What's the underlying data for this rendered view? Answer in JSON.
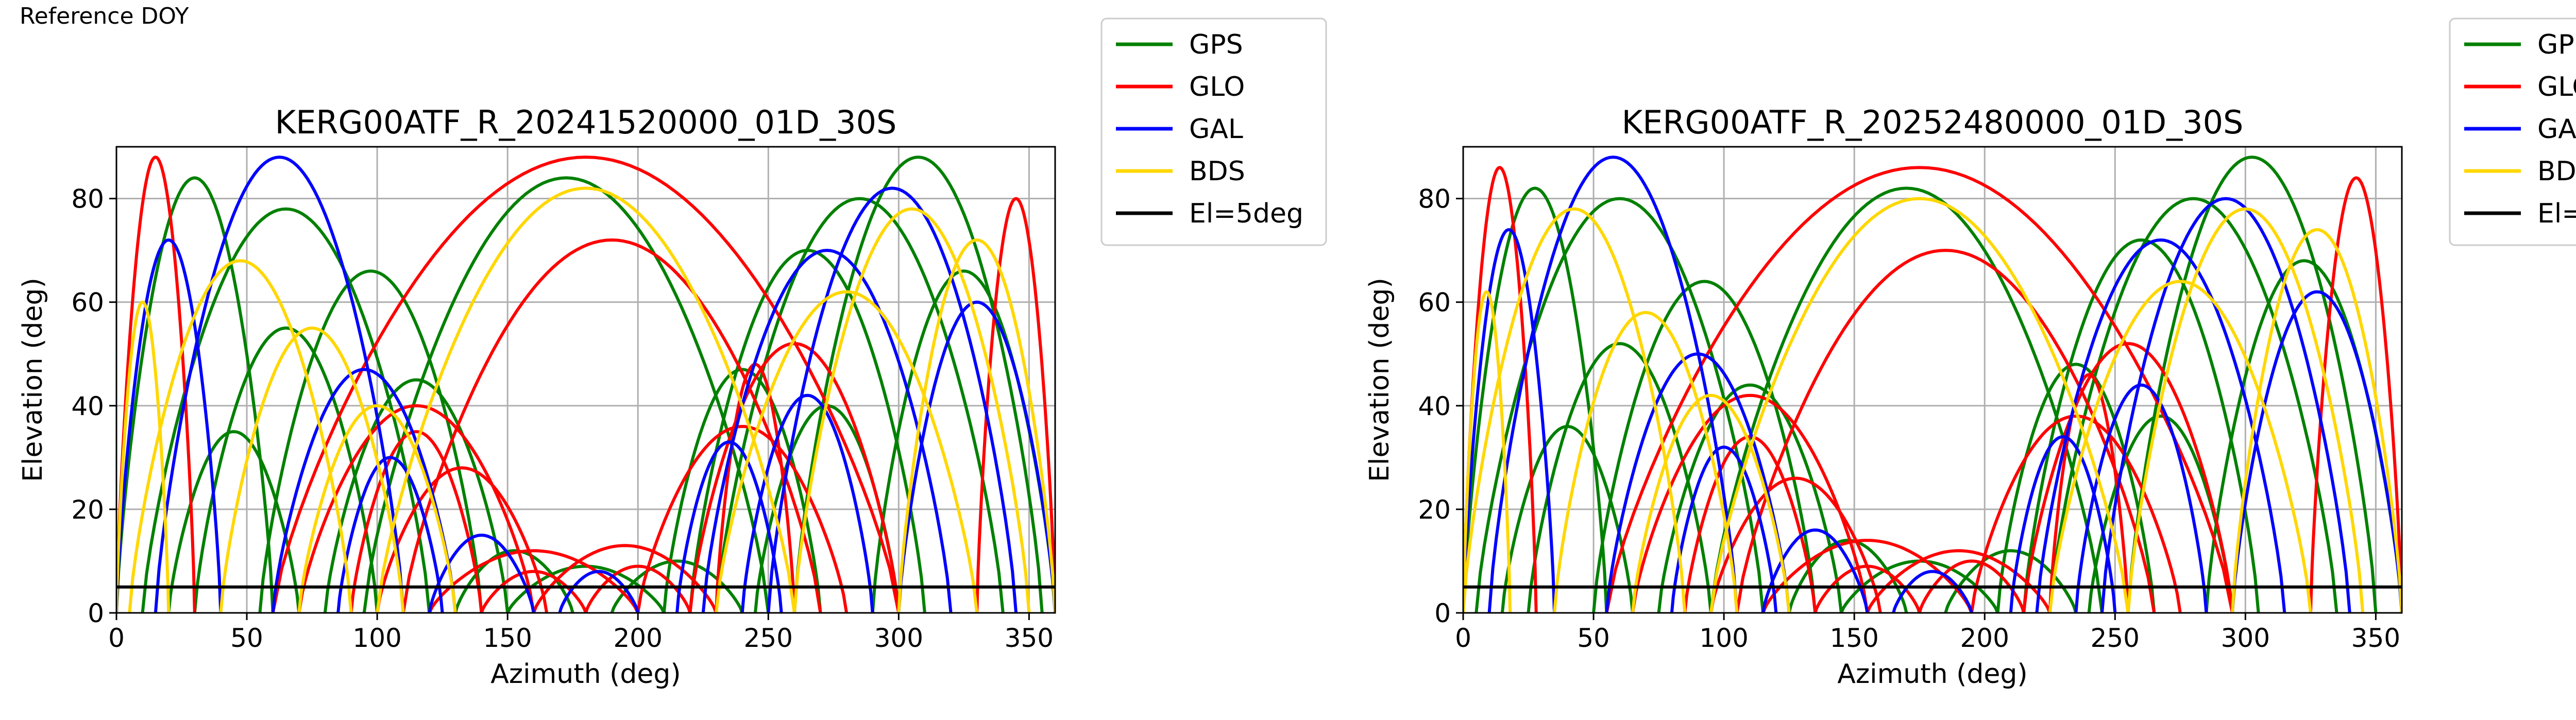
{
  "figure": {
    "suptitle": "Reference DOY"
  },
  "colors": {
    "GPS": "#008000",
    "GLO": "#ff0000",
    "GAL": "#0000ff",
    "BDS": "#ffd700",
    "El=5deg": "#000000"
  },
  "legend": {
    "entries": [
      "GPS",
      "GLO",
      "GAL",
      "BDS",
      "El=5deg"
    ],
    "placement": "outside-top-right"
  },
  "chart_data": [
    {
      "type": "line",
      "title": "KERG00ATF_R_20241520000_01D_30S",
      "xlabel": "Azimuth (deg)",
      "ylabel": "Elevation (deg)",
      "xlim": [
        0,
        360
      ],
      "ylim": [
        0,
        90
      ],
      "xticks": [
        0,
        50,
        100,
        150,
        200,
        250,
        300,
        350
      ],
      "yticks": [
        0,
        20,
        40,
        60,
        80
      ],
      "grid": true,
      "reference_line": {
        "name": "El=5deg",
        "y": 5
      },
      "series": [
        {
          "name": "GPS",
          "arcs": [
            {
              "rise": 10,
              "set": 120,
              "peak": 78
            },
            {
              "rise": 30,
              "set": 100,
              "peak": 55
            },
            {
              "rise": 55,
              "set": 140,
              "peak": 66
            },
            {
              "rise": 80,
              "set": 150,
              "peak": 45
            },
            {
              "rise": 95,
              "set": 250,
              "peak": 84
            },
            {
              "rise": 130,
              "set": 175,
              "peak": 12
            },
            {
              "rise": 150,
              "set": 210,
              "peak": 9
            },
            {
              "rise": 210,
              "set": 270,
              "peak": 47
            },
            {
              "rise": 220,
              "set": 310,
              "peak": 70
            },
            {
              "rise": 230,
              "set": 340,
              "peak": 80
            },
            {
              "rise": 245,
              "set": 300,
              "peak": 40
            },
            {
              "rise": 260,
              "set": 355,
              "peak": 88
            },
            {
              "rise": 0,
              "set": 60,
              "peak": 84
            },
            {
              "rise": 290,
              "set": 360,
              "peak": 66
            },
            {
              "rise": 20,
              "set": 70,
              "peak": 35
            },
            {
              "rise": 190,
              "set": 240,
              "peak": 10
            }
          ]
        },
        {
          "name": "GLO",
          "arcs": [
            {
              "rise": 70,
              "set": 160,
              "peak": 40
            },
            {
              "rise": 90,
              "set": 140,
              "peak": 35
            },
            {
              "rise": 100,
              "set": 165,
              "peak": 28
            },
            {
              "rise": 120,
              "set": 200,
              "peak": 12
            },
            {
              "rise": 160,
              "set": 230,
              "peak": 13
            },
            {
              "rise": 200,
              "set": 280,
              "peak": 36
            },
            {
              "rise": 220,
              "set": 300,
              "peak": 52
            },
            {
              "rise": 230,
              "set": 260,
              "peak": 48
            },
            {
              "rise": 60,
              "set": 300,
              "peak": 88
            },
            {
              "rise": 110,
              "set": 270,
              "peak": 72
            },
            {
              "rise": 0,
              "set": 30,
              "peak": 88
            },
            {
              "rise": 330,
              "set": 360,
              "peak": 80
            },
            {
              "rise": 140,
              "set": 180,
              "peak": 8
            },
            {
              "rise": 180,
              "set": 220,
              "peak": 9
            }
          ]
        },
        {
          "name": "GAL",
          "arcs": [
            {
              "rise": 15,
              "set": 110,
              "peak": 88
            },
            {
              "rise": 60,
              "set": 130,
              "peak": 47
            },
            {
              "rise": 85,
              "set": 125,
              "peak": 30
            },
            {
              "rise": 120,
              "set": 160,
              "peak": 15
            },
            {
              "rise": 170,
              "set": 200,
              "peak": 8
            },
            {
              "rise": 215,
              "set": 255,
              "peak": 33
            },
            {
              "rise": 225,
              "set": 320,
              "peak": 70
            },
            {
              "rise": 250,
              "set": 345,
              "peak": 82
            },
            {
              "rise": 300,
              "set": 360,
              "peak": 60
            },
            {
              "rise": 0,
              "set": 40,
              "peak": 72
            },
            {
              "rise": 240,
              "set": 290,
              "peak": 42
            }
          ]
        },
        {
          "name": "BDS",
          "arcs": [
            {
              "rise": 5,
              "set": 90,
              "peak": 68
            },
            {
              "rise": 40,
              "set": 110,
              "peak": 55
            },
            {
              "rise": 70,
              "set": 130,
              "peak": 40
            },
            {
              "rise": 100,
              "set": 260,
              "peak": 82
            },
            {
              "rise": 230,
              "set": 330,
              "peak": 62
            },
            {
              "rise": 260,
              "set": 350,
              "peak": 78
            },
            {
              "rise": 300,
              "set": 360,
              "peak": 72
            },
            {
              "rise": 0,
              "set": 20,
              "peak": 60
            }
          ]
        },
        {
          "name": "El=5deg",
          "x": [
            0,
            360
          ],
          "y": [
            5,
            5
          ]
        }
      ]
    },
    {
      "type": "line",
      "title": "KERG00ATF_R_20252480000_01D_30S",
      "xlabel": "Azimuth (deg)",
      "ylabel": "Elevation (deg)",
      "xlim": [
        0,
        360
      ],
      "ylim": [
        0,
        90
      ],
      "xticks": [
        0,
        50,
        100,
        150,
        200,
        250,
        300,
        350
      ],
      "yticks": [
        0,
        20,
        40,
        60,
        80
      ],
      "grid": true,
      "reference_line": {
        "name": "El=5deg",
        "y": 5
      },
      "series": [
        {
          "name": "GPS",
          "arcs": [
            {
              "rise": 5,
              "set": 115,
              "peak": 80
            },
            {
              "rise": 25,
              "set": 95,
              "peak": 52
            },
            {
              "rise": 50,
              "set": 135,
              "peak": 64
            },
            {
              "rise": 75,
              "set": 145,
              "peak": 44
            },
            {
              "rise": 95,
              "set": 245,
              "peak": 82
            },
            {
              "rise": 125,
              "set": 170,
              "peak": 14
            },
            {
              "rise": 145,
              "set": 205,
              "peak": 10
            },
            {
              "rise": 205,
              "set": 265,
              "peak": 48
            },
            {
              "rise": 215,
              "set": 305,
              "peak": 72
            },
            {
              "rise": 225,
              "set": 335,
              "peak": 80
            },
            {
              "rise": 240,
              "set": 295,
              "peak": 38
            },
            {
              "rise": 255,
              "set": 350,
              "peak": 88
            },
            {
              "rise": 0,
              "set": 55,
              "peak": 82
            },
            {
              "rise": 285,
              "set": 360,
              "peak": 68
            },
            {
              "rise": 15,
              "set": 65,
              "peak": 36
            },
            {
              "rise": 185,
              "set": 235,
              "peak": 12
            }
          ]
        },
        {
          "name": "GLO",
          "arcs": [
            {
              "rise": 65,
              "set": 155,
              "peak": 42
            },
            {
              "rise": 85,
              "set": 135,
              "peak": 34
            },
            {
              "rise": 95,
              "set": 160,
              "peak": 26
            },
            {
              "rise": 115,
              "set": 195,
              "peak": 14
            },
            {
              "rise": 155,
              "set": 225,
              "peak": 12
            },
            {
              "rise": 195,
              "set": 275,
              "peak": 38
            },
            {
              "rise": 215,
              "set": 295,
              "peak": 52
            },
            {
              "rise": 225,
              "set": 255,
              "peak": 46
            },
            {
              "rise": 55,
              "set": 295,
              "peak": 86
            },
            {
              "rise": 105,
              "set": 265,
              "peak": 70
            },
            {
              "rise": 0,
              "set": 28,
              "peak": 86
            },
            {
              "rise": 325,
              "set": 360,
              "peak": 84
            },
            {
              "rise": 135,
              "set": 175,
              "peak": 9
            },
            {
              "rise": 175,
              "set": 215,
              "peak": 10
            }
          ]
        },
        {
          "name": "GAL",
          "arcs": [
            {
              "rise": 10,
              "set": 105,
              "peak": 88
            },
            {
              "rise": 55,
              "set": 125,
              "peak": 50
            },
            {
              "rise": 80,
              "set": 120,
              "peak": 32
            },
            {
              "rise": 115,
              "set": 155,
              "peak": 16
            },
            {
              "rise": 165,
              "set": 195,
              "peak": 8
            },
            {
              "rise": 210,
              "set": 250,
              "peak": 34
            },
            {
              "rise": 220,
              "set": 315,
              "peak": 72
            },
            {
              "rise": 245,
              "set": 340,
              "peak": 80
            },
            {
              "rise": 295,
              "set": 360,
              "peak": 62
            },
            {
              "rise": 0,
              "set": 35,
              "peak": 74
            },
            {
              "rise": 235,
              "set": 285,
              "peak": 44
            }
          ]
        },
        {
          "name": "BDS",
          "arcs": [
            {
              "rise": 0,
              "set": 85,
              "peak": 78
            },
            {
              "rise": 35,
              "set": 105,
              "peak": 58
            },
            {
              "rise": 65,
              "set": 125,
              "peak": 42
            },
            {
              "rise": 95,
              "set": 255,
              "peak": 80
            },
            {
              "rise": 225,
              "set": 325,
              "peak": 64
            },
            {
              "rise": 255,
              "set": 345,
              "peak": 78
            },
            {
              "rise": 295,
              "set": 360,
              "peak": 74
            },
            {
              "rise": 0,
              "set": 18,
              "peak": 62
            }
          ]
        },
        {
          "name": "El=5deg",
          "x": [
            0,
            360
          ],
          "y": [
            5,
            5
          ]
        }
      ]
    }
  ]
}
